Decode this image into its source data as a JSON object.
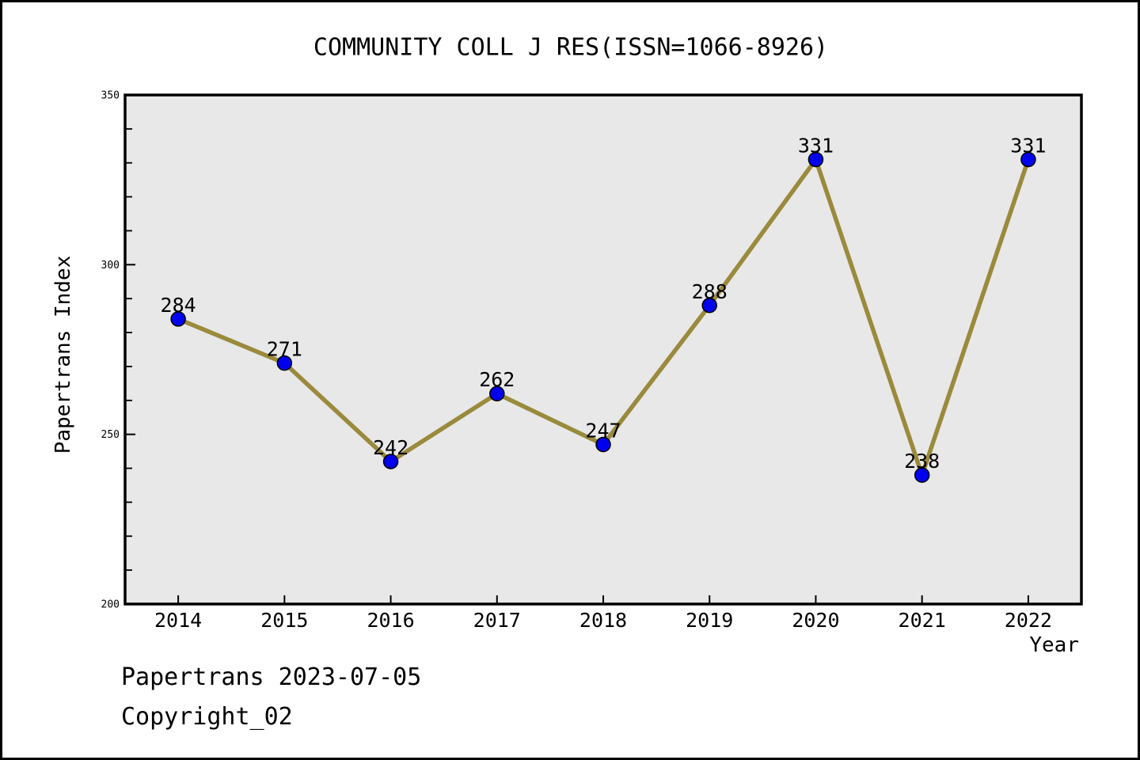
{
  "figure": {
    "background": "#ffffff",
    "border_color": "#000000"
  },
  "footer": {
    "line1": "Papertrans 2023-07-05",
    "line2": "Copyright_02"
  },
  "chart_data": {
    "type": "line",
    "title": "COMMUNITY COLL J RES(ISSN=1066-8926)",
    "xlabel": "Year",
    "ylabel": "Papertrans Index",
    "categories": [
      2014,
      2015,
      2016,
      2017,
      2018,
      2019,
      2020,
      2021,
      2022
    ],
    "values": [
      284,
      271,
      242,
      262,
      247,
      288,
      331,
      238,
      331
    ],
    "ylim": [
      200,
      350
    ],
    "xlim": [
      2013.5,
      2022.5
    ],
    "y_major_ticks": [
      200,
      250,
      300,
      350
    ],
    "y_minor_step": 10,
    "grid": false,
    "legend": false,
    "styles": {
      "line_color": "#9a8a3c",
      "marker_fill": "#0000ee",
      "marker_edge": "#000000",
      "plot_background": "#e8e8e8",
      "plot_border": "#000000",
      "tick_color": "#000000",
      "label_color": "#000000"
    }
  }
}
